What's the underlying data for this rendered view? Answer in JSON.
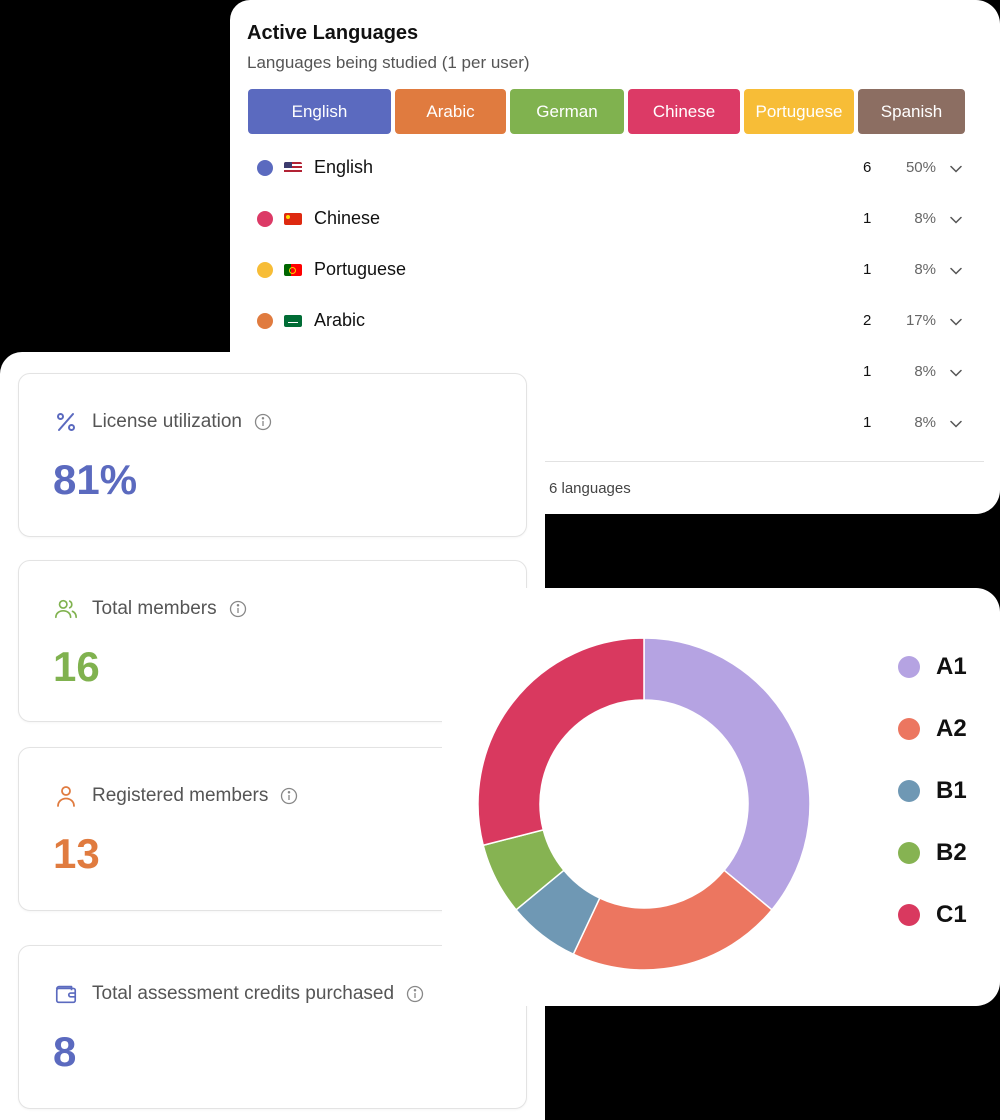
{
  "languages_panel": {
    "title": "Active Languages",
    "subtitle": "Languages being studied (1 per user)",
    "chips": [
      {
        "label": "English",
        "color": "#5b6abf",
        "width": 143
      },
      {
        "label": "Arabic",
        "color": "#e07b3f",
        "width": 111
      },
      {
        "label": "German",
        "color": "#80b24f",
        "width": 114
      },
      {
        "label": "Chinese",
        "color": "#dc3a66",
        "width": 112
      },
      {
        "label": "Portuguese",
        "color": "#f7bd37",
        "width": 110
      },
      {
        "label": "Spanish",
        "color": "#8c6e62",
        "width": 107
      }
    ],
    "rows": [
      {
        "name": "English",
        "dot_color": "#5b6abf",
        "flag": "us",
        "count": "6",
        "percent": "50%"
      },
      {
        "name": "Chinese",
        "dot_color": "#dc3a66",
        "flag": "cn",
        "count": "1",
        "percent": "8%"
      },
      {
        "name": "Portuguese",
        "dot_color": "#f7bd37",
        "flag": "pt",
        "count": "1",
        "percent": "8%"
      },
      {
        "name": "Arabic",
        "dot_color": "#e07b3f",
        "flag": "sa",
        "count": "2",
        "percent": "17%"
      },
      {
        "name": "",
        "dot_color": "",
        "flag": "",
        "count": "1",
        "percent": "8%"
      },
      {
        "name": "",
        "dot_color": "",
        "flag": "",
        "count": "1",
        "percent": "8%"
      }
    ],
    "footer": "6 languages"
  },
  "stats": [
    {
      "label": "License utilization",
      "value": "81%",
      "icon": "percent-icon",
      "color": "#5b6abf"
    },
    {
      "label": "Total members",
      "value": "16",
      "icon": "users-icon",
      "color": "#80b24f"
    },
    {
      "label": "Registered members",
      "value": "13",
      "icon": "user-icon",
      "color": "#e07b3f"
    },
    {
      "label": "Total assessment credits purchased",
      "value": "8",
      "icon": "wallet-icon",
      "color": "#5b6abf"
    }
  ],
  "chart_data": {
    "type": "pie",
    "categories": [
      "A1",
      "A2",
      "B1",
      "B2",
      "C1"
    ],
    "values": [
      36,
      21,
      7,
      7,
      29
    ],
    "colors": [
      "#b5a3e2",
      "#ec7660",
      "#6f98b4",
      "#86b352",
      "#d9395f"
    ],
    "legend": "right"
  }
}
